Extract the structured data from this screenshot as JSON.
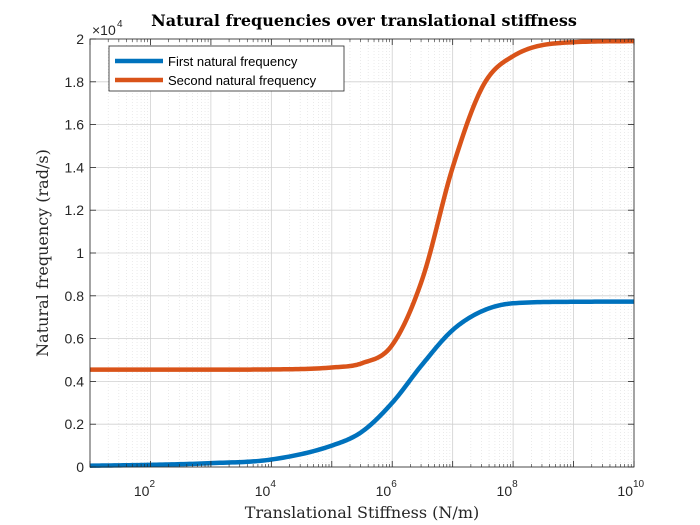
{
  "chart_data": {
    "type": "line",
    "title": "Natural frequencies over translational stiffness",
    "xlabel": "Translational Stiffness (N/m)",
    "ylabel": "Natural frequency (rad/s)",
    "x_scale": "log",
    "xlim": [
      10,
      10000000000
    ],
    "ylim": [
      0,
      20000
    ],
    "y_exponent_label": "×10",
    "y_exponent": "4",
    "x_ticks": [
      {
        "value": 100,
        "base": "10",
        "exp": "2"
      },
      {
        "value": 10000,
        "base": "10",
        "exp": "4"
      },
      {
        "value": 1000000,
        "base": "10",
        "exp": "6"
      },
      {
        "value": 100000000,
        "base": "10",
        "exp": "8"
      },
      {
        "value": 10000000000,
        "base": "10",
        "exp": "10"
      }
    ],
    "y_ticks": [
      {
        "value": 0,
        "label": "0"
      },
      {
        "value": 2000,
        "label": "0.2"
      },
      {
        "value": 4000,
        "label": "0.4"
      },
      {
        "value": 6000,
        "label": "0.6"
      },
      {
        "value": 8000,
        "label": "0.8"
      },
      {
        "value": 10000,
        "label": "1"
      },
      {
        "value": 12000,
        "label": "1.2"
      },
      {
        "value": 14000,
        "label": "1.4"
      },
      {
        "value": 16000,
        "label": "1.6"
      },
      {
        "value": 18000,
        "label": "1.8"
      },
      {
        "value": 20000,
        "label": "2"
      }
    ],
    "grid": true,
    "legend_position": "top-left",
    "x": [
      10,
      100,
      1000,
      10000,
      100000,
      316000,
      1000000,
      3160000,
      10000000,
      31600000,
      100000000,
      1000000000,
      10000000000
    ],
    "series": [
      {
        "name": "First natural frequency",
        "color": "#0072BD",
        "values": [
          60,
          100,
          180,
          350,
          1000,
          1650,
          3000,
          4800,
          6400,
          7300,
          7650,
          7720,
          7730
        ]
      },
      {
        "name": "Second natural frequency",
        "color": "#D95319",
        "values": [
          4550,
          4550,
          4550,
          4560,
          4650,
          4850,
          5700,
          8800,
          14000,
          17800,
          19200,
          19850,
          19900
        ]
      }
    ]
  }
}
